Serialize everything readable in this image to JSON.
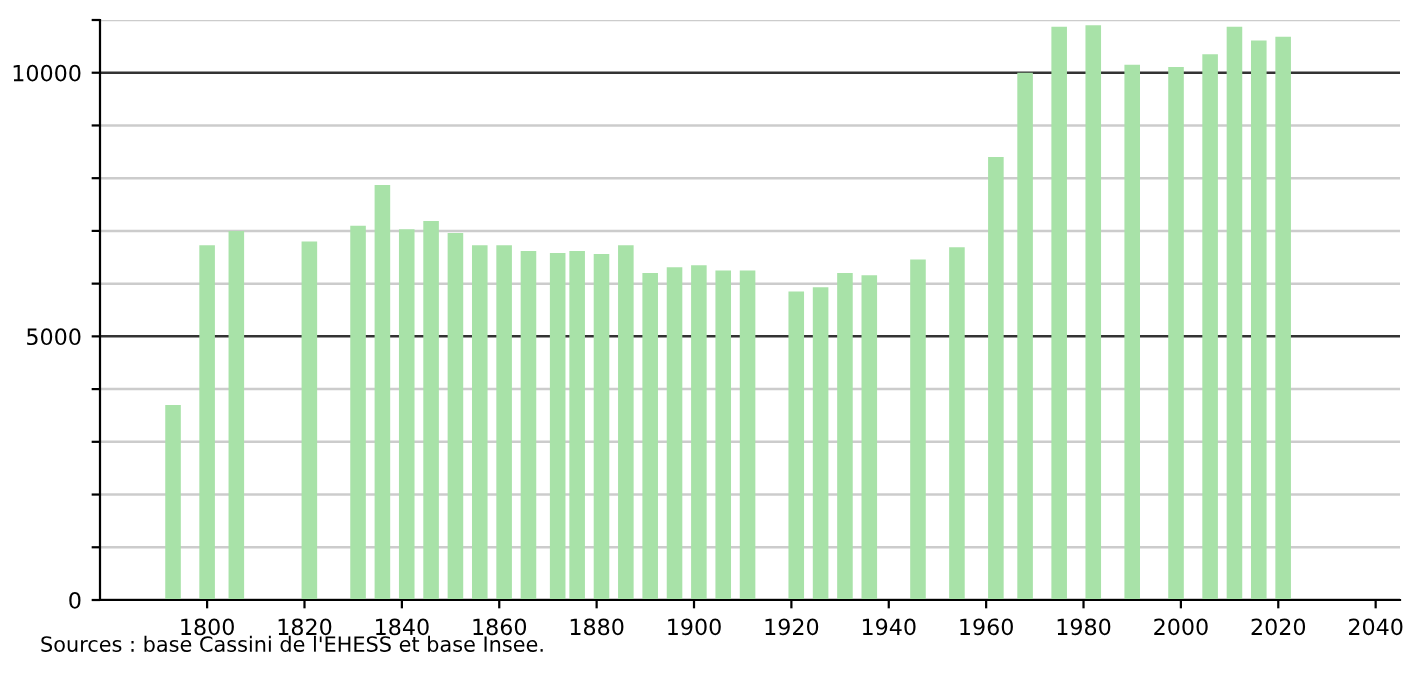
{
  "chart_data": {
    "type": "bar",
    "x": [
      1793,
      1800,
      1806,
      1821,
      1831,
      1836,
      1841,
      1846,
      1851,
      1856,
      1861,
      1866,
      1872,
      1876,
      1881,
      1886,
      1891,
      1896,
      1901,
      1906,
      1911,
      1921,
      1926,
      1931,
      1936,
      1946,
      1954,
      1962,
      1968,
      1975,
      1982,
      1990,
      1999,
      2006,
      2011,
      2016,
      2021
    ],
    "series": [
      {
        "color": "#a8e2a8",
        "values": [
          3700,
          6730,
          7000,
          6800,
          7100,
          7870,
          7030,
          7190,
          6960,
          6730,
          6730,
          6620,
          6580,
          6620,
          6560,
          6730,
          6200,
          6310,
          6350,
          6250,
          6250,
          5850,
          5930,
          6200,
          6160,
          6460,
          6690,
          8400,
          10000,
          10870,
          10900,
          10150,
          10110,
          10350,
          10870,
          10610,
          10680
        ]
      }
    ],
    "xlim": [
      1778,
      2045
    ],
    "ylim": [
      0,
      11000
    ],
    "xticks": [
      1800,
      1820,
      1840,
      1860,
      1880,
      1900,
      1920,
      1940,
      1960,
      1980,
      2000,
      2020,
      2040
    ],
    "yticks": [
      0,
      {
        "value": 1000,
        "label": null
      },
      {
        "value": 2000,
        "label": null
      },
      {
        "value": 3000,
        "label": null
      },
      {
        "value": 4000,
        "label": null
      },
      5000,
      {
        "value": 6000,
        "label": null
      },
      {
        "value": 7000,
        "label": null
      },
      {
        "value": 8000,
        "label": null
      },
      {
        "value": 9000,
        "label": null
      },
      10000,
      {
        "value": 11000,
        "label": null
      }
    ],
    "grid": "y",
    "annotations": [
      "Sources : base Cassini de l'EHESS et base Insee."
    ]
  }
}
